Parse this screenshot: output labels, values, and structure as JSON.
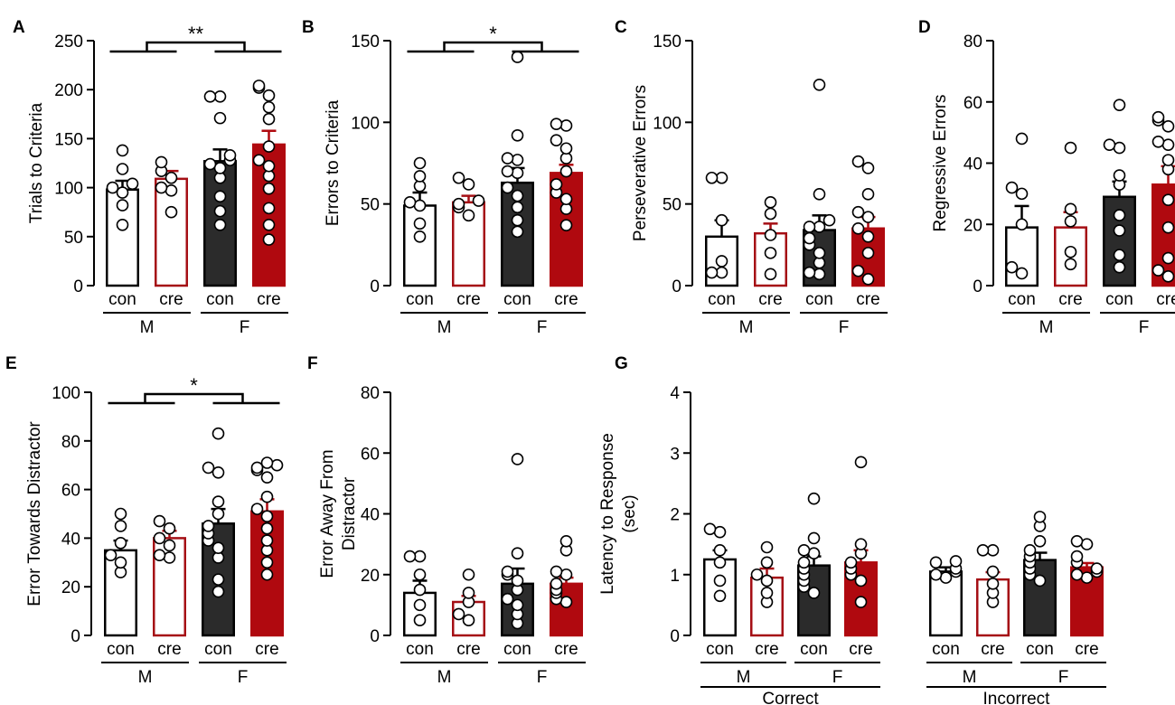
{
  "colors": {
    "con_male_fill": "#ffffff",
    "con_male_edge": "#000000",
    "cre_male_fill": "#ffffff",
    "cre_male_edge": "#a50f15",
    "con_female_fill": "#2b2b2b",
    "con_female_edge": "#000000",
    "cre_female_fill": "#b0090f",
    "cre_female_edge": "#b0090f"
  },
  "chart_data": [
    {
      "panel": "A",
      "type": "bar",
      "ylabel": "Trials to Criteria",
      "ylim": [
        0,
        250
      ],
      "yticks": [
        0,
        50,
        100,
        150,
        200,
        250
      ],
      "categories": [
        "con",
        "cre",
        "con",
        "cre"
      ],
      "groups": [
        {
          "label": "M",
          "span": [
            0,
            1
          ]
        },
        {
          "label": "F",
          "span": [
            2,
            3
          ]
        }
      ],
      "values": [
        98,
        109,
        127,
        144
      ],
      "errors": [
        9,
        8,
        12,
        14
      ],
      "points": [
        [
          62,
          82,
          95,
          100,
          104,
          119,
          138
        ],
        [
          75,
          97,
          100,
          110,
          117,
          126
        ],
        [
          62,
          76,
          91,
          110,
          120,
          124,
          128,
          133,
          171,
          193,
          193
        ],
        [
          47,
          62,
          79,
          99,
          112,
          122,
          128,
          142,
          170,
          182,
          194,
          202,
          204
        ]
      ],
      "significance": [
        {
          "from": 0,
          "to": 1,
          "mark": "**"
        }
      ]
    },
    {
      "panel": "B",
      "type": "bar",
      "ylabel": "Errors to Criteria",
      "ylim": [
        0,
        150
      ],
      "yticks": [
        0,
        50,
        100,
        150
      ],
      "categories": [
        "con",
        "cre",
        "con",
        "cre"
      ],
      "groups": [
        {
          "label": "M",
          "span": [
            0,
            1
          ]
        },
        {
          "label": "F",
          "span": [
            2,
            3
          ]
        }
      ],
      "values": [
        49,
        51,
        63,
        69
      ],
      "errors": [
        8,
        4,
        9,
        5
      ],
      "points": [
        [
          30,
          38,
          49,
          51,
          61,
          67,
          75
        ],
        [
          43,
          48,
          50,
          52,
          62,
          66
        ],
        [
          33,
          40,
          48,
          55,
          60,
          69,
          70,
          77,
          78,
          92,
          140
        ],
        [
          37,
          47,
          53,
          57,
          62,
          70,
          78,
          84,
          89,
          98,
          99
        ]
      ],
      "significance": [
        {
          "from": 0,
          "to": 1,
          "mark": "*"
        }
      ]
    },
    {
      "panel": "C",
      "type": "bar",
      "ylabel": "Perseverative Errors",
      "ylim": [
        0,
        150
      ],
      "yticks": [
        0,
        50,
        100,
        150
      ],
      "categories": [
        "con",
        "cre",
        "con",
        "cre"
      ],
      "groups": [
        {
          "label": "M",
          "span": [
            0,
            1
          ]
        },
        {
          "label": "F",
          "span": [
            2,
            3
          ]
        }
      ],
      "values": [
        30,
        32,
        34,
        35
      ],
      "errors": [
        10,
        6,
        9,
        7
      ],
      "points": [
        [
          8,
          8,
          15,
          40,
          66,
          66
        ],
        [
          7,
          20,
          31,
          44,
          51
        ],
        [
          7,
          8,
          14,
          20,
          25,
          29,
          36,
          36,
          40,
          56,
          123
        ],
        [
          4,
          9,
          20,
          30,
          35,
          42,
          45,
          56,
          72,
          76
        ]
      ],
      "significance": []
    },
    {
      "panel": "D",
      "type": "bar",
      "ylabel": "Regressive Errors",
      "ylim": [
        0,
        80
      ],
      "yticks": [
        0,
        20,
        40,
        60,
        80
      ],
      "categories": [
        "con",
        "cre",
        "con",
        "cre"
      ],
      "groups": [
        {
          "label": "M",
          "span": [
            0,
            1
          ]
        },
        {
          "label": "F",
          "span": [
            2,
            3
          ]
        }
      ],
      "values": [
        19,
        19,
        29,
        33
      ],
      "errors": [
        7,
        5,
        5,
        6
      ],
      "points": [
        [
          4,
          6,
          20,
          30,
          32,
          48
        ],
        [
          7,
          11,
          21,
          25,
          45
        ],
        [
          6,
          10,
          18,
          23,
          33,
          36,
          45,
          46,
          59
        ],
        [
          3,
          5,
          9,
          19,
          28,
          38,
          41,
          46,
          47,
          52,
          54,
          55
        ]
      ],
      "significance": []
    },
    {
      "panel": "E",
      "type": "bar",
      "ylabel": "Error Towards Distractor",
      "ylim": [
        0,
        100
      ],
      "yticks": [
        0,
        20,
        40,
        60,
        80,
        100
      ],
      "categories": [
        "con",
        "cre",
        "con",
        "cre"
      ],
      "groups": [
        {
          "label": "M",
          "span": [
            0,
            1
          ]
        },
        {
          "label": "F",
          "span": [
            2,
            3
          ]
        }
      ],
      "values": [
        35,
        40,
        46,
        51
      ],
      "errors": [
        4,
        3,
        6,
        5
      ],
      "points": [
        [
          26,
          30,
          33,
          38,
          45,
          50
        ],
        [
          32,
          33,
          37,
          40,
          44,
          47
        ],
        [
          18,
          23,
          32,
          36,
          39,
          42,
          45,
          50,
          55,
          67,
          69,
          83
        ],
        [
          25,
          30,
          35,
          39,
          44,
          49,
          52,
          57,
          65,
          68,
          69,
          70,
          71
        ]
      ],
      "significance": [
        {
          "from": 0,
          "to": 1,
          "mark": "*"
        }
      ]
    },
    {
      "panel": "F",
      "type": "bar",
      "ylabel": "Error Away From Distractor",
      "ylim": [
        0,
        80
      ],
      "yticks": [
        0,
        20,
        40,
        60,
        80
      ],
      "categories": [
        "con",
        "cre",
        "con",
        "cre"
      ],
      "groups": [
        {
          "label": "M",
          "span": [
            0,
            1
          ]
        },
        {
          "label": "F",
          "span": [
            2,
            3
          ]
        }
      ],
      "values": [
        14,
        11,
        17,
        17
      ],
      "errors": [
        4,
        2,
        5,
        2
      ],
      "points": [
        [
          5,
          10,
          15,
          20,
          26,
          26
        ],
        [
          5,
          7,
          11,
          14,
          20
        ],
        [
          4,
          7,
          10,
          12,
          15,
          18,
          20,
          21,
          27,
          58
        ],
        [
          11,
          12,
          14,
          15,
          17,
          20,
          21,
          28,
          31
        ]
      ],
      "significance": []
    },
    {
      "panel": "G",
      "type": "bar",
      "ylabel": "Latency to Response (sec)",
      "ylim": [
        0,
        4
      ],
      "yticks": [
        0,
        1,
        2,
        3,
        4
      ],
      "categories": [
        "con",
        "cre",
        "con",
        "cre",
        "con",
        "cre",
        "con",
        "cre"
      ],
      "groups": [
        {
          "label": "M",
          "span": [
            0,
            1
          ]
        },
        {
          "label": "F",
          "span": [
            2,
            3
          ]
        },
        {
          "label": "M",
          "span": [
            4,
            5
          ]
        },
        {
          "label": "F",
          "span": [
            6,
            7
          ]
        }
      ],
      "supergroups": [
        {
          "label": "Correct",
          "span": [
            0,
            3
          ]
        },
        {
          "label": "Incorrect",
          "span": [
            4,
            7
          ]
        }
      ],
      "values": [
        1.25,
        0.95,
        1.15,
        1.2,
        1.05,
        0.92,
        1.24,
        1.12
      ],
      "errors": [
        0.15,
        0.15,
        0.15,
        0.2,
        0.07,
        0.12,
        0.12,
        0.07
      ],
      "points": [
        [
          0.65,
          0.9,
          1.2,
          1.4,
          1.7,
          1.75
        ],
        [
          0.55,
          0.7,
          0.9,
          1.0,
          1.2,
          1.45
        ],
        [
          0.7,
          0.8,
          0.9,
          1.0,
          1.1,
          1.2,
          1.35,
          1.4,
          1.6,
          2.25
        ],
        [
          0.55,
          0.9,
          1.0,
          1.1,
          1.2,
          1.35,
          1.5,
          2.85
        ],
        [
          0.95,
          1.0,
          1.05,
          1.1,
          1.2,
          1.22
        ],
        [
          0.55,
          0.7,
          0.85,
          1.05,
          1.4,
          1.4
        ],
        [
          0.9,
          1.0,
          1.1,
          1.2,
          1.3,
          1.4,
          1.55,
          1.8,
          1.95
        ],
        [
          0.95,
          1.0,
          1.05,
          1.1,
          1.2,
          1.3,
          1.5,
          1.55
        ]
      ],
      "significance": []
    }
  ]
}
